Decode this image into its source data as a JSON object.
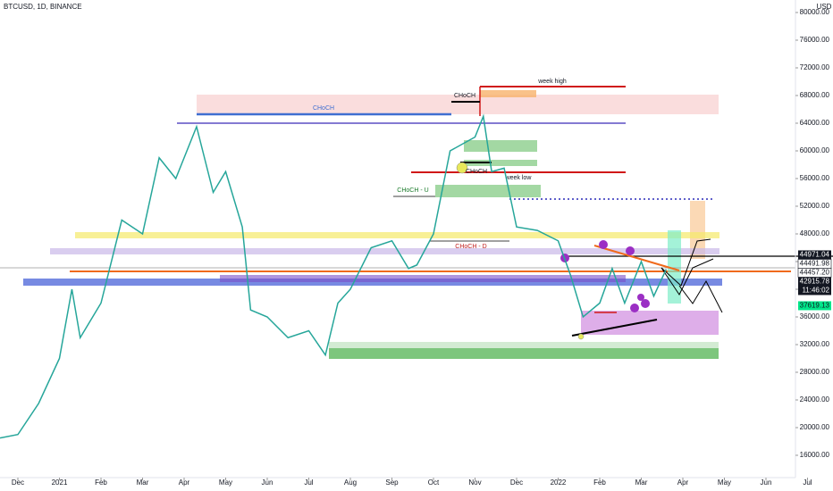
{
  "chart_data": {
    "type": "line",
    "title": "BTCUSD, 1D, BINANCE",
    "currency": "USD",
    "x": [
      -0.43,
      0,
      0.5,
      1,
      1.3,
      1.5,
      2,
      2.5,
      3,
      3.4,
      3.8,
      4.3,
      4.7,
      5,
      5.4,
      5.6,
      6,
      6.5,
      7,
      7.4,
      7.7,
      8,
      8.5,
      9,
      9.4,
      9.6,
      10,
      10.4,
      10.7,
      11,
      11.2,
      11.4,
      11.7,
      12,
      12.5,
      13,
      13.3,
      13.6,
      14,
      14.3,
      14.6,
      15,
      15.3,
      15.6
    ],
    "series": [
      {
        "name": "BTCUSD",
        "color": "#26a69a",
        "values": [
          18500,
          19000,
          23500,
          30000,
          40000,
          33000,
          38000,
          50000,
          48000,
          59000,
          56000,
          63500,
          54000,
          57000,
          49000,
          37000,
          36000,
          33000,
          34000,
          30500,
          38000,
          40000,
          46000,
          47000,
          43000,
          43500,
          48000,
          60000,
          61000,
          62000,
          65000,
          57000,
          57500,
          49000,
          48500,
          47000,
          42000,
          36000,
          38000,
          43000,
          38000,
          44000,
          39000,
          42900
        ]
      }
    ],
    "xlim": [
      -0.43,
      18.71
    ],
    "xticks": [
      {
        "value": 0,
        "label": "Dec"
      },
      {
        "value": 1,
        "label": "2021"
      },
      {
        "value": 2,
        "label": "Feb"
      },
      {
        "value": 3,
        "label": "Mar"
      },
      {
        "value": 4,
        "label": "Apr"
      },
      {
        "value": 5,
        "label": "May"
      },
      {
        "value": 6,
        "label": "Jun"
      },
      {
        "value": 7,
        "label": "Jul"
      },
      {
        "value": 8,
        "label": "Aug"
      },
      {
        "value": 9,
        "label": "Sep"
      },
      {
        "value": 10,
        "label": "Oct"
      },
      {
        "value": 11,
        "label": "Nov"
      },
      {
        "value": 12,
        "label": "Dec"
      },
      {
        "value": 13,
        "label": "2022"
      },
      {
        "value": 14,
        "label": "Feb"
      },
      {
        "value": 15,
        "label": "Mar"
      },
      {
        "value": 16,
        "label": "Apr"
      },
      {
        "value": 17,
        "label": "May"
      },
      {
        "value": 18,
        "label": "Jun"
      },
      {
        "value": 19,
        "label": "Jul"
      }
    ],
    "ylim": [
      12774,
      81806
    ],
    "yticks": [
      {
        "value": 16000,
        "label": "16000.00"
      },
      {
        "value": 20000,
        "label": "20000.00"
      },
      {
        "value": 24000,
        "label": "24000.00"
      },
      {
        "value": 28000,
        "label": "28000.00"
      },
      {
        "value": 32000,
        "label": "32000.00"
      },
      {
        "value": 36000,
        "label": "36000.00"
      },
      {
        "value": 40000,
        "label": "40000.00"
      },
      {
        "value": 44000,
        "label": "44000.00"
      },
      {
        "value": 48000,
        "label": "48000.00"
      },
      {
        "value": 52000,
        "label": "52000.00"
      },
      {
        "value": 56000,
        "label": "56000.00"
      },
      {
        "value": 60000,
        "label": "60000.00"
      },
      {
        "value": 64000,
        "label": "64000.00"
      },
      {
        "value": 68000,
        "label": "68000.00"
      },
      {
        "value": 72000,
        "label": "72000.00"
      },
      {
        "value": 76000,
        "label": "76000.00"
      },
      {
        "value": 80000,
        "label": "80000.00"
      }
    ],
    "price_labels": [
      {
        "value": 44971.04,
        "label": "44971.04",
        "color": "#131722"
      },
      {
        "value": 44491.98,
        "label": "44491.98",
        "color": "#ffffff"
      },
      {
        "value": 44457.2,
        "label": "44457.20",
        "color": "#ffffff"
      },
      {
        "value": 42915.78,
        "label": "42915.78",
        "color": "#131722",
        "countdown": "11:46:02"
      },
      {
        "value": 37619.13,
        "label": "37619.13",
        "color": "#00e68a"
      }
    ],
    "annotations": [
      "CHoCH",
      "CHoCH",
      "week high",
      "CHoCH",
      "week low",
      "CHoCH - U",
      "CHoCH - D"
    ]
  }
}
